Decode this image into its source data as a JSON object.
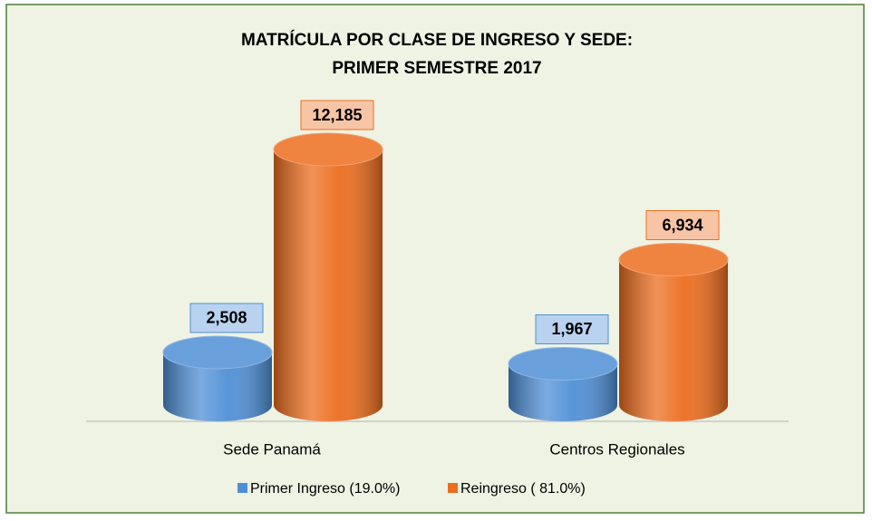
{
  "chart_data": {
    "type": "bar",
    "title": "MATRÍCULA POR CLASE DE INGRESO Y SEDE:",
    "subtitle": "PRIMER SEMESTRE 2017",
    "categories": [
      "Sede Panamá",
      "Centros Regionales"
    ],
    "series": [
      {
        "name": "Primer Ingreso (19.0%)",
        "color": "#4f8fd6",
        "values": [
          2508,
          1967
        ],
        "value_labels": [
          "2,508",
          "1,967"
        ]
      },
      {
        "name": "Reingreso ( 81.0%)",
        "color": "#ec6d1e",
        "values": [
          12185,
          6934
        ],
        "value_labels": [
          "12,185",
          "6,934"
        ]
      }
    ]
  }
}
